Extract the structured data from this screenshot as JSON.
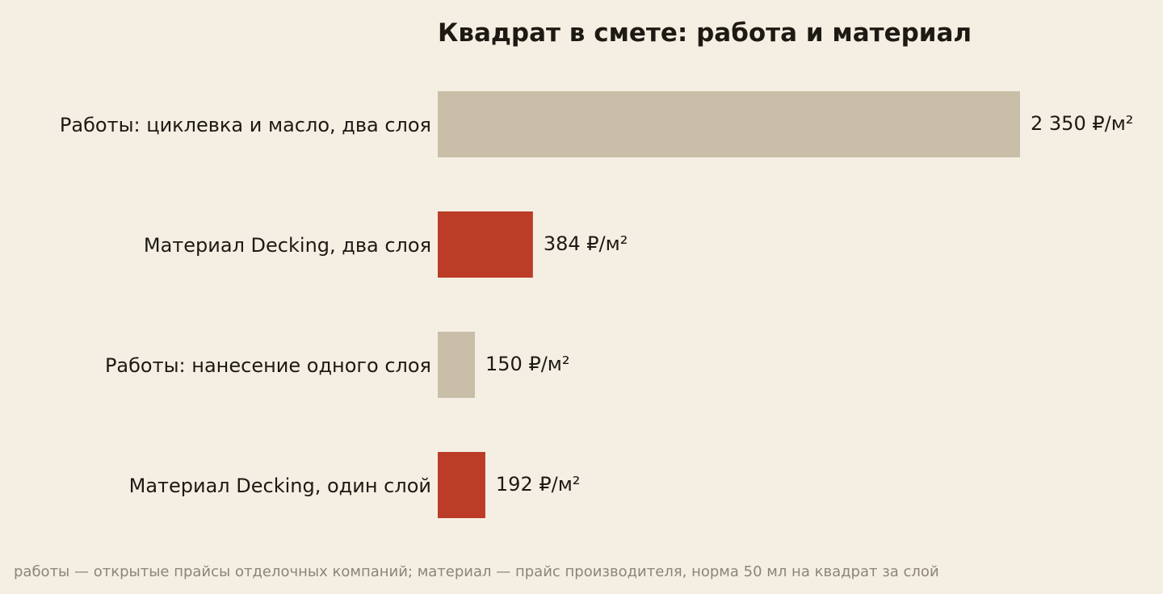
{
  "chart_data": {
    "type": "bar",
    "orientation": "horizontal",
    "title": "Квадрат в смете: работа и материал",
    "categories": [
      "Работы: циклевка и масло, два слоя",
      "Материал Decking, два слоя",
      "Работы: нанесение одного слоя",
      "Материал Decking, один слой"
    ],
    "values": [
      2350,
      384,
      150,
      192
    ],
    "value_labels": [
      "2 350 ₽/м²",
      "384 ₽/м²",
      "150 ₽/м²",
      "192 ₽/м²"
    ],
    "bar_kind": [
      "work",
      "material",
      "work",
      "material"
    ],
    "colors": {
      "work": "#c9bea7",
      "material": "#bb3c27"
    },
    "unit": "₽/м²",
    "xlim": [
      0,
      2350
    ],
    "grid": false,
    "legend": "none",
    "footnote": "работы — открытые прайсы отделочных компаний; материал — прайс производителя, норма 50 мл на квадрат за слой"
  }
}
